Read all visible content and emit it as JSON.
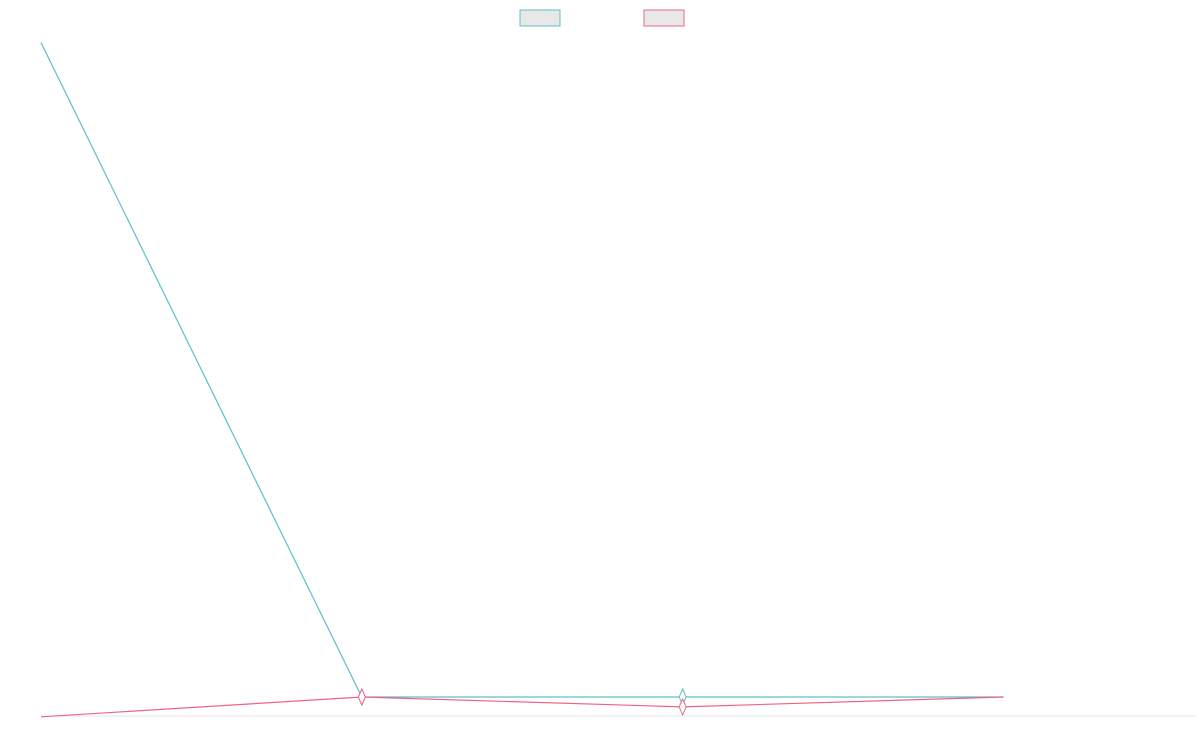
{
  "chart_data": {
    "type": "line",
    "title": "",
    "xlabel": "",
    "ylabel": "",
    "legend": "top-center",
    "grid": false,
    "x": [
      0,
      1,
      2,
      3
    ],
    "xlim": [
      0,
      3.6
    ],
    "ylim": [
      0,
      1
    ],
    "series": [
      {
        "name": "",
        "color": "#5bc0c9",
        "fill": "#e8e8e8",
        "values": [
          0.99,
          0.0,
          0.0,
          0.0
        ]
      },
      {
        "name": "",
        "color": "#f06383",
        "fill": "#e8e8e8",
        "values": [
          -0.03,
          0.0,
          -0.015,
          0.0
        ]
      }
    ]
  }
}
